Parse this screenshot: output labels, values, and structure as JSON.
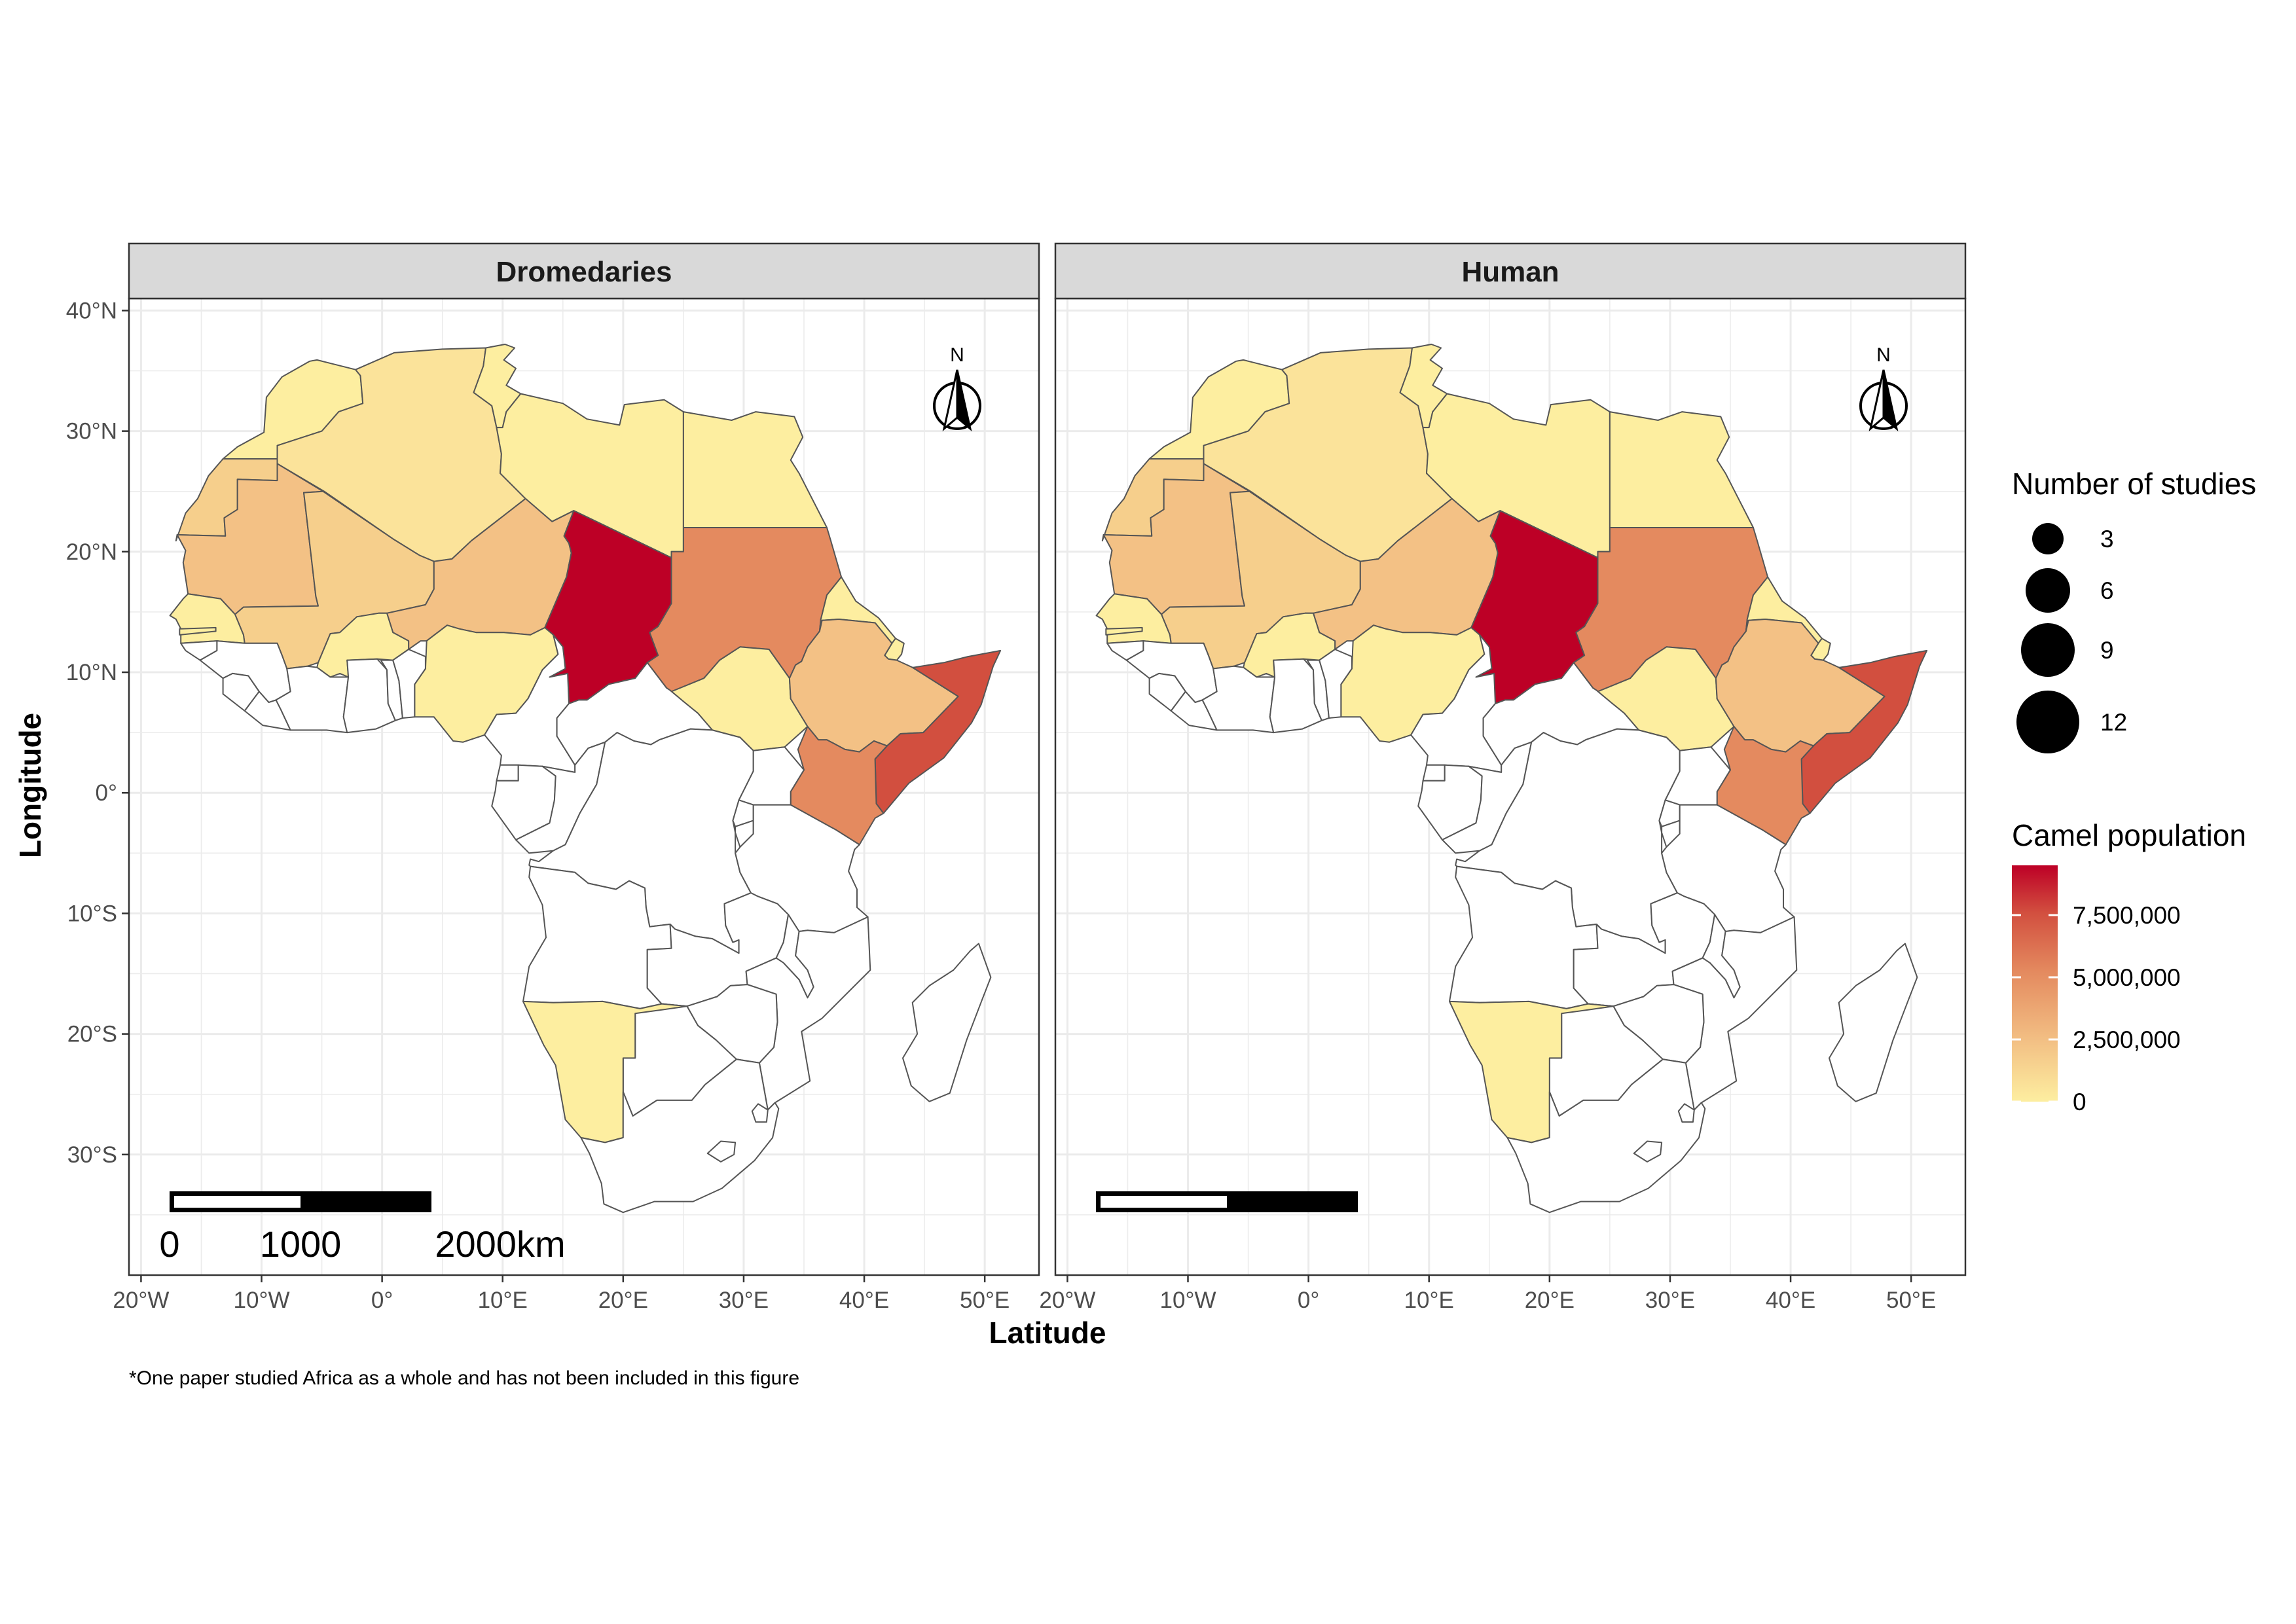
{
  "panels": [
    {
      "title": "Dromedaries",
      "show_scale_labels": true
    },
    {
      "title": "Human",
      "show_scale_labels": false
    }
  ],
  "axes": {
    "x_title": "Latitude",
    "y_title": "Longitude",
    "x_ticks": [
      {
        "value": -20,
        "label": "20°W"
      },
      {
        "value": -10,
        "label": "10°W"
      },
      {
        "value": 0,
        "label": "0°"
      },
      {
        "value": 10,
        "label": "10°E"
      },
      {
        "value": 20,
        "label": "20°E"
      },
      {
        "value": 30,
        "label": "30°E"
      },
      {
        "value": 40,
        "label": "40°E"
      },
      {
        "value": 50,
        "label": "50°E"
      }
    ],
    "y_ticks": [
      {
        "value": 40,
        "label": "40°N"
      },
      {
        "value": 30,
        "label": "30°N"
      },
      {
        "value": 20,
        "label": "20°N"
      },
      {
        "value": 10,
        "label": "10°N"
      },
      {
        "value": 0,
        "label": "0°"
      },
      {
        "value": -10,
        "label": "10°S"
      },
      {
        "value": -20,
        "label": "20°S"
      },
      {
        "value": -30,
        "label": "30°S"
      }
    ],
    "xlim": [
      -21,
      54.5
    ],
    "ylim": [
      -40,
      41
    ]
  },
  "north_arrow_label": "N",
  "scale_bar": {
    "labels": [
      "0",
      "1000",
      "2000km"
    ]
  },
  "legend": {
    "size_title": "Number of studies",
    "size_values": [
      "3",
      "6",
      "9",
      "12"
    ],
    "color_title": "Camel population",
    "color_labels": [
      "7,500,000",
      "5,000,000",
      "2,500,000",
      "0"
    ],
    "color_values": [
      7500000,
      5000000,
      2500000,
      0
    ],
    "color_max": 9500000
  },
  "colors": {
    "c0": "#fdeea0",
    "c1": "#fbe39a",
    "c2": "#f6cf8c",
    "c3": "#f3c185",
    "c4": "#f1b47a",
    "c5": "#e48a5f",
    "c6": "#d24f3f",
    "c7": "#bd0026",
    "none": "#ffffff",
    "border": "#555555",
    "grid": "#ebebeb",
    "strip": "#d9d9d9"
  },
  "caption": "*One paper studied Africa as a whole and has not been included in this figure",
  "map_data": {
    "scale": "Camel population",
    "countries": [
      {
        "name": "Chad",
        "color": "c7"
      },
      {
        "name": "Somalia",
        "color": "c6"
      },
      {
        "name": "Sudan",
        "color": "c5"
      },
      {
        "name": "Kenya",
        "color": "c5"
      },
      {
        "name": "Ethiopia",
        "color": "c3"
      },
      {
        "name": "Niger",
        "color": "c3"
      },
      {
        "name": "Mauritania",
        "color": "c3"
      },
      {
        "name": "Mali",
        "color": "c2"
      },
      {
        "name": "Western Sahara",
        "color": "c2"
      },
      {
        "name": "Algeria",
        "color": "c1"
      },
      {
        "name": "Morocco",
        "color": "c0"
      },
      {
        "name": "Tunisia",
        "color": "c0"
      },
      {
        "name": "Libya",
        "color": "c0"
      },
      {
        "name": "Egypt",
        "color": "c0"
      },
      {
        "name": "Eritrea",
        "color": "c0"
      },
      {
        "name": "Djibouti",
        "color": "c0"
      },
      {
        "name": "South Sudan",
        "color": "c0"
      },
      {
        "name": "Nigeria",
        "color": "c0"
      },
      {
        "name": "Burkina Faso",
        "color": "c0"
      },
      {
        "name": "Senegal",
        "color": "c0"
      },
      {
        "name": "Gambia",
        "color": "c0"
      },
      {
        "name": "Namibia",
        "color": "c0"
      }
    ]
  }
}
